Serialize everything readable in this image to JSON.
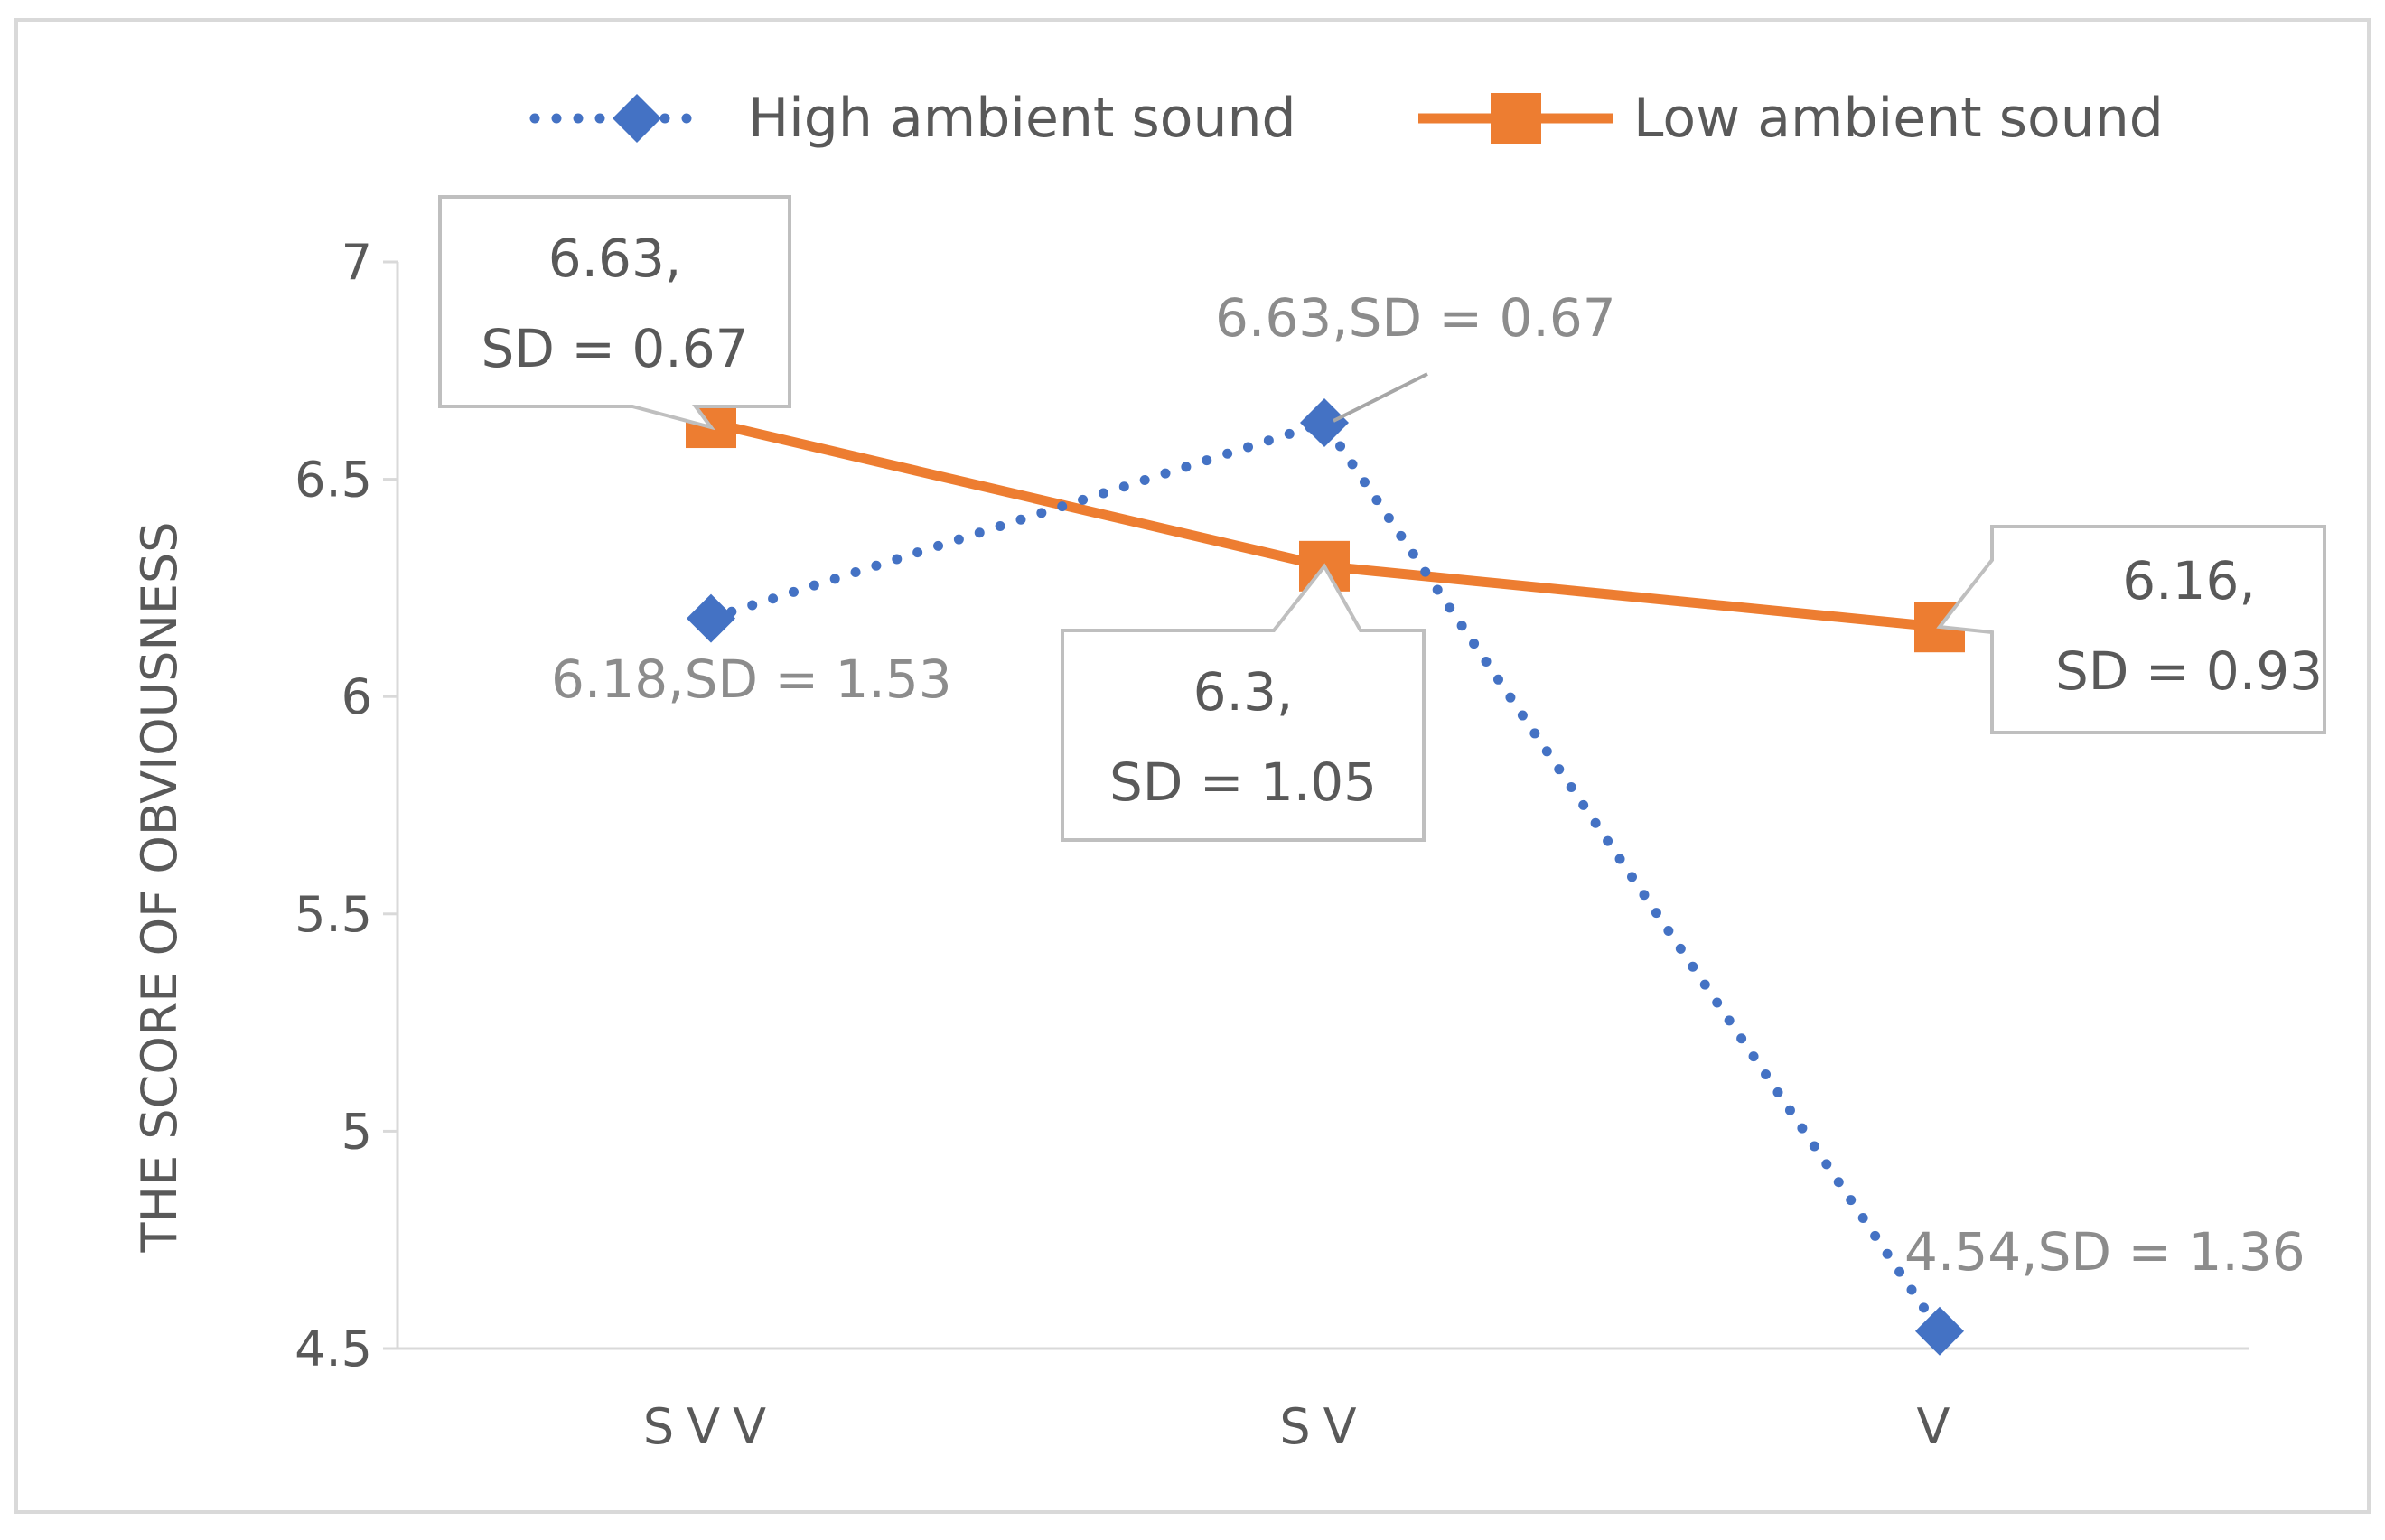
{
  "chart_data": {
    "type": "line",
    "title": "",
    "xlabel": "",
    "ylabel": "THE SCORE OF OBVIOUSNESS",
    "categories": [
      "SVV",
      "SV",
      "V"
    ],
    "ylim": [
      4.5,
      7
    ],
    "yticks": [
      "4.5",
      "5",
      "5.5",
      "6",
      "6.5",
      "7"
    ],
    "grid": false,
    "legend_position": "top",
    "series": [
      {
        "name": "High ambient sound",
        "values": [
          6.18,
          6.63,
          4.54
        ],
        "color": "#4472C4",
        "line_style": "dotted",
        "marker": "diamond",
        "labels": [
          "6.18,SD = 1.53",
          "6.63,SD = 0.67",
          "4.54,SD = 1.36"
        ]
      },
      {
        "name": "Low ambient sound",
        "values": [
          6.63,
          6.3,
          6.16
        ],
        "color": "#ED7D31",
        "line_style": "solid",
        "marker": "square",
        "labels": [
          [
            "6.63,",
            "SD = 0.67"
          ],
          [
            "6.3,",
            "SD = 1.05"
          ],
          [
            "6.16,",
            "SD = 0.93"
          ]
        ]
      }
    ]
  }
}
